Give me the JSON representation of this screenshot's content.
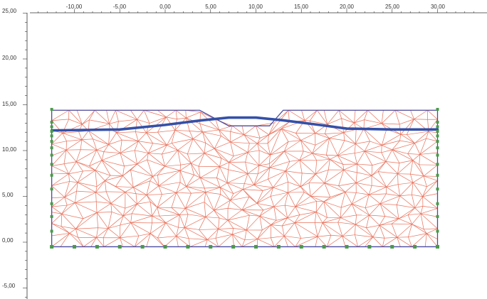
{
  "viewport": {
    "x_ticks": [
      "-10,00",
      "-5,00",
      "0,00",
      "5,00",
      "10,00",
      "15,00",
      "20,00",
      "25,00",
      "30,00"
    ],
    "y_ticks": [
      "25,00",
      "20,00",
      "15,00",
      "10,00",
      "5,00",
      "0,00",
      "-5,00"
    ]
  },
  "model": {
    "x_range": [
      -12.5,
      30
    ],
    "y_range": [
      -0.5,
      14.5
    ],
    "bottom_nodes_x": [
      -12.5,
      -10,
      -7.5,
      -5,
      -2.5,
      0,
      2.5,
      5,
      7.5,
      10,
      12.5,
      15,
      17.5,
      20,
      22.5,
      25,
      27.5,
      30
    ],
    "side_nodes_y": [
      -0.5,
      1.2,
      2.8,
      4.2,
      5.8,
      7.3,
      8.5,
      9.5,
      10.3,
      11,
      11.6,
      12.1,
      12.6,
      13.1,
      14.5
    ],
    "embankment_outline": [
      [
        -12.5,
        14.4
      ],
      [
        3.8,
        14.4
      ],
      [
        7,
        12.7
      ],
      [
        11.5,
        12.7
      ],
      [
        13,
        14.4
      ],
      [
        30,
        14.4
      ]
    ],
    "phreatic_line": [
      [
        -12.5,
        12.2
      ],
      [
        -5,
        12.3
      ],
      [
        0,
        12.8
      ],
      [
        4,
        13.3
      ],
      [
        7,
        13.6
      ],
      [
        10,
        13.6
      ],
      [
        13,
        13.3
      ],
      [
        17,
        12.8
      ],
      [
        20,
        12.4
      ],
      [
        25,
        12.3
      ],
      [
        30,
        12.3
      ]
    ]
  },
  "colors": {
    "mesh": "#e8705a",
    "boundary": "#4a4aa0",
    "phreatic": "#3450a8",
    "node": "#4a9a4a",
    "axis": "#333333"
  }
}
